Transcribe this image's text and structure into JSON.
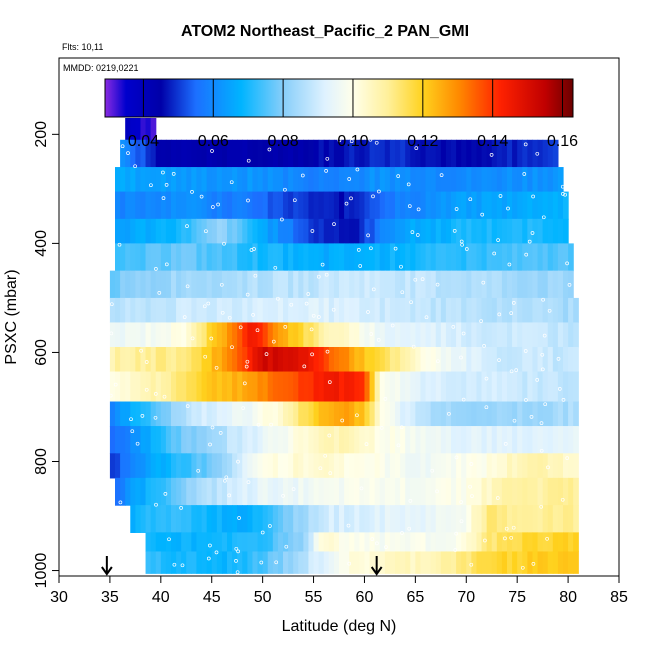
{
  "chart_data": {
    "type": "heatmap",
    "title": "ATOM2 Northeast_Pacific_2 PAN_GMI",
    "annotations": [
      "Flts: 10,11",
      "MMDD: 0219,0221"
    ],
    "xlabel": "Latitude (deg N)",
    "ylabel": "PSXC (mbar)",
    "xlim": [
      30,
      85
    ],
    "ylim": [
      1010,
      60
    ],
    "y_reversed": true,
    "xticks": [
      30,
      35,
      40,
      45,
      50,
      55,
      60,
      65,
      70,
      75,
      80,
      85
    ],
    "yticks": [
      200,
      400,
      600,
      800,
      1000
    ],
    "colorbar": {
      "range": [
        0.029,
        0.163
      ],
      "ticks": [
        0.04,
        0.06,
        0.08,
        0.1,
        0.12,
        0.14,
        0.16
      ],
      "tick_labels": [
        "0.04",
        "0.06",
        "0.08",
        "0.10",
        "0.12",
        "0.14",
        "0.16"
      ],
      "stops": [
        [
          0.029,
          "#8a2be2"
        ],
        [
          0.035,
          "#0000cd"
        ],
        [
          0.045,
          "#0000a8"
        ],
        [
          0.055,
          "#1c6fff"
        ],
        [
          0.068,
          "#00b4ff"
        ],
        [
          0.08,
          "#87cefa"
        ],
        [
          0.092,
          "#dff2ff"
        ],
        [
          0.1,
          "#ffffea"
        ],
        [
          0.11,
          "#fff09a"
        ],
        [
          0.12,
          "#ffd21e"
        ],
        [
          0.13,
          "#ff8c00"
        ],
        [
          0.142,
          "#ff2200"
        ],
        [
          0.155,
          "#c00000"
        ],
        [
          0.163,
          "#6b0000"
        ]
      ]
    },
    "markers": [
      {
        "latitude": 34.7,
        "symbol": "arrow-down"
      },
      {
        "latitude": 61.2,
        "symbol": "arrow-down"
      }
    ],
    "curtain_bins": [
      {
        "p0": 170,
        "p1": 210,
        "lat_min": 36.5,
        "lat_max": 39.5,
        "values": [
          [
            36.5,
            0.04
          ],
          [
            38.0,
            0.035
          ],
          [
            39.5,
            0.032
          ]
        ]
      },
      {
        "p0": 210,
        "p1": 260,
        "lat_min": 36,
        "lat_max": 79,
        "values": [
          [
            36,
            0.062
          ],
          [
            40,
            0.044
          ],
          [
            48,
            0.043
          ],
          [
            55,
            0.045
          ],
          [
            63,
            0.05
          ],
          [
            70,
            0.044
          ],
          [
            79,
            0.052
          ]
        ]
      },
      {
        "p0": 260,
        "p1": 305,
        "lat_min": 35.5,
        "lat_max": 79.5,
        "values": [
          [
            35.5,
            0.066
          ],
          [
            42,
            0.063
          ],
          [
            50,
            0.062
          ],
          [
            56,
            0.058
          ],
          [
            62,
            0.062
          ],
          [
            70,
            0.06
          ],
          [
            79.5,
            0.063
          ]
        ]
      },
      {
        "p0": 305,
        "p1": 355,
        "lat_min": 35.5,
        "lat_max": 80,
        "values": [
          [
            35.5,
            0.058
          ],
          [
            42,
            0.062
          ],
          [
            48,
            0.057
          ],
          [
            53,
            0.05
          ],
          [
            58,
            0.046
          ],
          [
            62,
            0.057
          ],
          [
            70,
            0.064
          ],
          [
            80,
            0.068
          ]
        ]
      },
      {
        "p0": 355,
        "p1": 400,
        "lat_min": 35.5,
        "lat_max": 80,
        "values": [
          [
            35.5,
            0.064
          ],
          [
            42,
            0.07
          ],
          [
            46,
            0.082
          ],
          [
            50,
            0.066
          ],
          [
            55,
            0.05
          ],
          [
            59,
            0.046
          ],
          [
            63,
            0.064
          ],
          [
            70,
            0.07
          ],
          [
            80,
            0.07
          ]
        ]
      },
      {
        "p0": 400,
        "p1": 450,
        "lat_min": 35.5,
        "lat_max": 80.5,
        "values": [
          [
            35.5,
            0.072
          ],
          [
            42,
            0.078
          ],
          [
            50,
            0.07
          ],
          [
            56,
            0.066
          ],
          [
            62,
            0.068
          ],
          [
            70,
            0.072
          ],
          [
            80.5,
            0.076
          ]
        ]
      },
      {
        "p0": 450,
        "p1": 500,
        "lat_min": 35,
        "lat_max": 80.5,
        "values": [
          [
            35,
            0.078
          ],
          [
            42,
            0.084
          ],
          [
            50,
            0.086
          ],
          [
            60,
            0.09
          ],
          [
            70,
            0.086
          ],
          [
            80.5,
            0.082
          ]
        ]
      },
      {
        "p0": 500,
        "p1": 545,
        "lat_min": 35,
        "lat_max": 81,
        "values": [
          [
            35,
            0.086
          ],
          [
            45,
            0.09
          ],
          [
            55,
            0.092
          ],
          [
            65,
            0.088
          ],
          [
            75,
            0.086
          ],
          [
            81,
            0.084
          ]
        ]
      },
      {
        "p0": 545,
        "p1": 590,
        "lat_min": 35,
        "lat_max": 81,
        "values": [
          [
            35,
            0.094
          ],
          [
            42,
            0.1
          ],
          [
            46,
            0.125
          ],
          [
            49,
            0.145
          ],
          [
            52,
            0.126
          ],
          [
            56,
            0.108
          ],
          [
            62,
            0.094
          ],
          [
            72,
            0.09
          ],
          [
            81,
            0.088
          ]
        ]
      },
      {
        "p0": 590,
        "p1": 635,
        "lat_min": 35,
        "lat_max": 81,
        "values": [
          [
            35,
            0.108
          ],
          [
            42,
            0.112
          ],
          [
            45,
            0.122
          ],
          [
            48,
            0.138
          ],
          [
            50,
            0.152
          ],
          [
            54,
            0.148
          ],
          [
            58,
            0.13
          ],
          [
            61,
            0.118
          ],
          [
            66,
            0.1
          ],
          [
            72,
            0.09
          ],
          [
            81,
            0.088
          ]
        ]
      },
      {
        "p0": 635,
        "p1": 690,
        "lat_min": 35,
        "lat_max": 81,
        "values": [
          [
            35,
            0.1
          ],
          [
            40,
            0.108
          ],
          [
            44,
            0.12
          ],
          [
            48,
            0.126
          ],
          [
            52,
            0.134
          ],
          [
            56,
            0.145
          ],
          [
            60,
            0.142
          ],
          [
            61.5,
            0.1
          ],
          [
            66,
            0.092
          ],
          [
            72,
            0.09
          ],
          [
            81,
            0.088
          ]
        ]
      },
      {
        "p0": 690,
        "p1": 735,
        "lat_min": 35,
        "lat_max": 81,
        "values": [
          [
            35,
            0.058
          ],
          [
            40,
            0.078
          ],
          [
            44,
            0.09
          ],
          [
            48,
            0.095
          ],
          [
            52,
            0.104
          ],
          [
            55,
            0.12
          ],
          [
            58,
            0.128
          ],
          [
            60,
            0.122
          ],
          [
            62,
            0.098
          ],
          [
            66,
            0.086
          ],
          [
            72,
            0.082
          ],
          [
            81,
            0.085
          ]
        ]
      },
      {
        "p0": 735,
        "p1": 785,
        "lat_min": 35,
        "lat_max": 81,
        "values": [
          [
            35,
            0.052
          ],
          [
            38,
            0.064
          ],
          [
            42,
            0.078
          ],
          [
            48,
            0.09
          ],
          [
            54,
            0.102
          ],
          [
            58,
            0.108
          ],
          [
            62,
            0.1
          ],
          [
            68,
            0.094
          ],
          [
            74,
            0.092
          ],
          [
            81,
            0.094
          ]
        ]
      },
      {
        "p0": 785,
        "p1": 830,
        "lat_min": 35,
        "lat_max": 81,
        "values": [
          [
            35,
            0.05
          ],
          [
            38,
            0.062
          ],
          [
            42,
            0.072
          ],
          [
            46,
            0.08
          ],
          [
            50,
            0.1
          ],
          [
            55,
            0.104
          ],
          [
            60,
            0.1
          ],
          [
            65,
            0.096
          ],
          [
            72,
            0.1
          ],
          [
            76,
            0.108
          ],
          [
            81,
            0.104
          ]
        ]
      },
      {
        "p0": 830,
        "p1": 880,
        "lat_min": 35.5,
        "lat_max": 81,
        "values": [
          [
            35.5,
            0.056
          ],
          [
            38,
            0.066
          ],
          [
            42,
            0.08
          ],
          [
            46,
            0.088
          ],
          [
            50,
            0.094
          ],
          [
            55,
            0.096
          ],
          [
            60,
            0.098
          ],
          [
            65,
            0.098
          ],
          [
            70,
            0.1
          ],
          [
            74,
            0.108
          ],
          [
            81,
            0.11
          ]
        ]
      },
      {
        "p0": 880,
        "p1": 930,
        "lat_min": 37,
        "lat_max": 81,
        "values": [
          [
            37,
            0.066
          ],
          [
            40,
            0.074
          ],
          [
            44,
            0.07
          ],
          [
            48,
            0.066
          ],
          [
            52,
            0.078
          ],
          [
            56,
            0.09
          ],
          [
            60,
            0.092
          ],
          [
            66,
            0.094
          ],
          [
            70,
            0.098
          ],
          [
            72,
            0.112
          ],
          [
            76,
            0.11
          ],
          [
            81,
            0.11
          ]
        ]
      },
      {
        "p0": 930,
        "p1": 965,
        "lat_min": 38.5,
        "lat_max": 81,
        "values": [
          [
            38.5,
            0.07
          ],
          [
            42,
            0.068
          ],
          [
            46,
            0.07
          ],
          [
            50,
            0.072
          ],
          [
            54,
            0.082
          ],
          [
            56,
            0.104
          ],
          [
            58,
            0.1
          ],
          [
            62,
            0.098
          ],
          [
            66,
            0.098
          ],
          [
            70,
            0.1
          ],
          [
            72,
            0.112
          ],
          [
            76,
            0.118
          ],
          [
            81,
            0.12
          ]
        ]
      },
      {
        "p0": 965,
        "p1": 1005,
        "lat_min": 38.5,
        "lat_max": 81,
        "values": [
          [
            38.5,
            0.072
          ],
          [
            42,
            0.07
          ],
          [
            46,
            0.068
          ],
          [
            50,
            0.074
          ],
          [
            54,
            0.086
          ],
          [
            58,
            0.1
          ],
          [
            62,
            0.104
          ],
          [
            66,
            0.106
          ],
          [
            70,
            0.112
          ],
          [
            72,
            0.118
          ],
          [
            76,
            0.12
          ],
          [
            81,
            0.122
          ]
        ]
      }
    ]
  }
}
